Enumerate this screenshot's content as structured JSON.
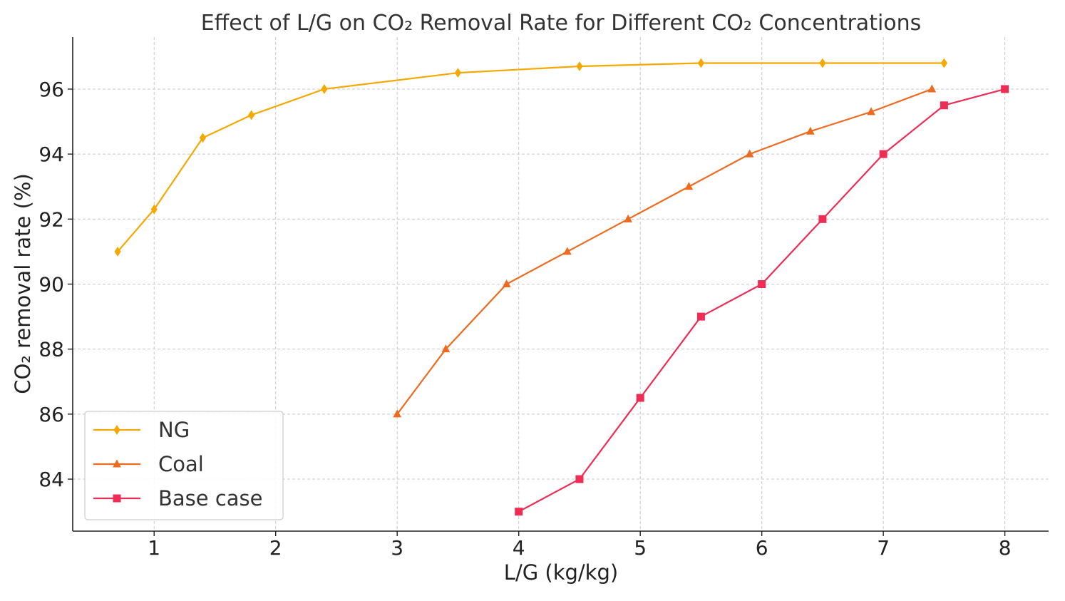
{
  "chart_data": {
    "type": "line",
    "title": "Effect of L/G on CO₂ Removal Rate for Different CO₂ Concentrations",
    "xlabel": "L/G (kg/kg)",
    "ylabel": "CO₂ removal rate (%)",
    "xlim": [
      0.33,
      8.36
    ],
    "ylim": [
      82.4,
      97.6
    ],
    "xticks": [
      1,
      2,
      3,
      4,
      5,
      6,
      7,
      8
    ],
    "yticks": [
      84,
      86,
      88,
      90,
      92,
      94,
      96
    ],
    "grid": true,
    "legend_position": "bottom-left",
    "series": [
      {
        "name": "NG",
        "color": "#F5A800",
        "marker": "diamond",
        "x": [
          0.7,
          1.0,
          1.4,
          1.8,
          2.4,
          3.5,
          4.5,
          5.5,
          6.5,
          7.5
        ],
        "y": [
          91.0,
          92.3,
          94.5,
          95.2,
          96.0,
          96.5,
          96.7,
          96.8,
          96.8,
          96.8
        ]
      },
      {
        "name": "Coal",
        "color": "#EE6A1E",
        "marker": "triangle",
        "x": [
          3.0,
          3.4,
          3.9,
          4.4,
          4.9,
          5.4,
          5.9,
          6.4,
          6.9,
          7.4
        ],
        "y": [
          86.0,
          88.0,
          90.0,
          91.0,
          92.0,
          93.0,
          94.0,
          94.7,
          95.3,
          96.0
        ]
      },
      {
        "name": "Base case",
        "color": "#EE2D55",
        "marker": "square",
        "x": [
          4.0,
          4.5,
          5.0,
          5.5,
          6.0,
          6.5,
          7.0,
          7.5,
          8.0
        ],
        "y": [
          83.0,
          84.0,
          86.5,
          89.0,
          90.0,
          92.0,
          94.0,
          95.5,
          96.0
        ]
      }
    ]
  }
}
